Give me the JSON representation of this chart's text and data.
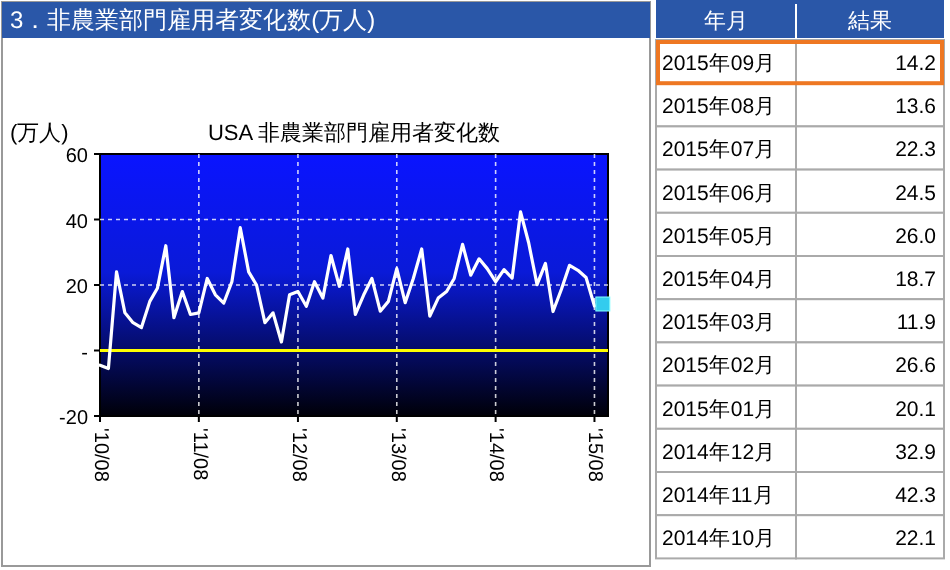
{
  "chart_data": [
    {
      "type": "line",
      "title": "3．非農業部門雇用者変化数(万人)",
      "subtitle": "USA 非農業部門雇用者変化数",
      "ylabel": "(万人)",
      "x": [
        "2010-08",
        "2010-09",
        "2010-10",
        "2010-11",
        "2010-12",
        "2011-01",
        "2011-02",
        "2011-03",
        "2011-04",
        "2011-05",
        "2011-06",
        "2011-07",
        "2011-08",
        "2011-09",
        "2011-10",
        "2011-11",
        "2011-12",
        "2012-01",
        "2012-02",
        "2012-03",
        "2012-04",
        "2012-05",
        "2012-06",
        "2012-07",
        "2012-08",
        "2012-09",
        "2012-10",
        "2012-11",
        "2012-12",
        "2013-01",
        "2013-02",
        "2013-03",
        "2013-04",
        "2013-05",
        "2013-06",
        "2013-07",
        "2013-08",
        "2013-09",
        "2013-10",
        "2013-11",
        "2013-12",
        "2014-01",
        "2014-02",
        "2014-03",
        "2014-04",
        "2014-05",
        "2014-06",
        "2014-07",
        "2014-08",
        "2014-09",
        "2014-10",
        "2014-11",
        "2014-12",
        "2015-01",
        "2015-02",
        "2015-03",
        "2015-04",
        "2015-05",
        "2015-06",
        "2015-07",
        "2015-08"
      ],
      "series": [
        {
          "type": "line",
          "color": "#ffffff",
          "values": [
            -4.5,
            -5.5,
            24,
            11.5,
            8.5,
            7,
            15,
            19,
            32,
            10,
            18,
            11,
            11.5,
            22,
            17,
            14.5,
            21,
            37.5,
            24,
            20,
            8.5,
            11.5,
            2.6,
            17,
            18,
            13.5,
            21,
            16,
            29,
            19.6,
            31,
            11,
            17,
            22,
            12,
            15,
            25,
            14.6,
            22,
            31,
            10.5,
            16,
            18,
            22,
            32.4,
            23,
            28,
            25,
            21,
            24.7,
            22.1,
            42.3,
            32.9,
            20.1,
            26.6,
            11.9,
            18.7,
            26.0,
            24.5,
            22.3,
            13.6
          ]
        },
        {
          "type": "scatter",
          "color": "#33ccee",
          "marker": "square",
          "x": [
            "2015-09"
          ],
          "values": [
            14.2
          ]
        }
      ],
      "xlim": [
        "2010-08-01",
        "2015-09-20"
      ],
      "xticks": [
        {
          "value": "2010-08",
          "label": "'10/08"
        },
        {
          "value": "2011-08",
          "label": "'11/08"
        },
        {
          "value": "2012-08",
          "label": "'12/08"
        },
        {
          "value": "2013-08",
          "label": "'13/08"
        },
        {
          "value": "2014-08",
          "label": "'14/08"
        },
        {
          "value": "2015-08",
          "label": "'15/08"
        }
      ],
      "ylim": [
        -20,
        60
      ],
      "yticks": [
        -20,
        {
          "value": 0,
          "label": "-"
        },
        20,
        40,
        60
      ],
      "grid": true,
      "line_style": "solid",
      "marker": "none",
      "ref_lines": [
        {
          "axis": "y",
          "value": 0,
          "color": "#ffff00"
        }
      ]
    },
    {
      "type": "other",
      "xlabel": "年月",
      "ylabel": "結果",
      "categories": [
        "2015年09月",
        "2015年08月",
        "2015年07月",
        "2015年06月",
        "2015年05月",
        "2015年04月",
        "2015年03月",
        "2015年02月",
        "2015年01月",
        "2014年12月",
        "2014年11月",
        "2014年10月"
      ],
      "values": [
        14.2,
        13.6,
        22.3,
        24.5,
        26.0,
        18.7,
        11.9,
        26.6,
        20.1,
        32.9,
        42.3,
        22.1
      ],
      "value_labels": [
        "14.2",
        "13.6",
        "22.3",
        "24.5",
        "26.0",
        "18.7",
        "11.9",
        "26.6",
        "20.1",
        "32.9",
        "42.3",
        "22.1"
      ]
    }
  ]
}
